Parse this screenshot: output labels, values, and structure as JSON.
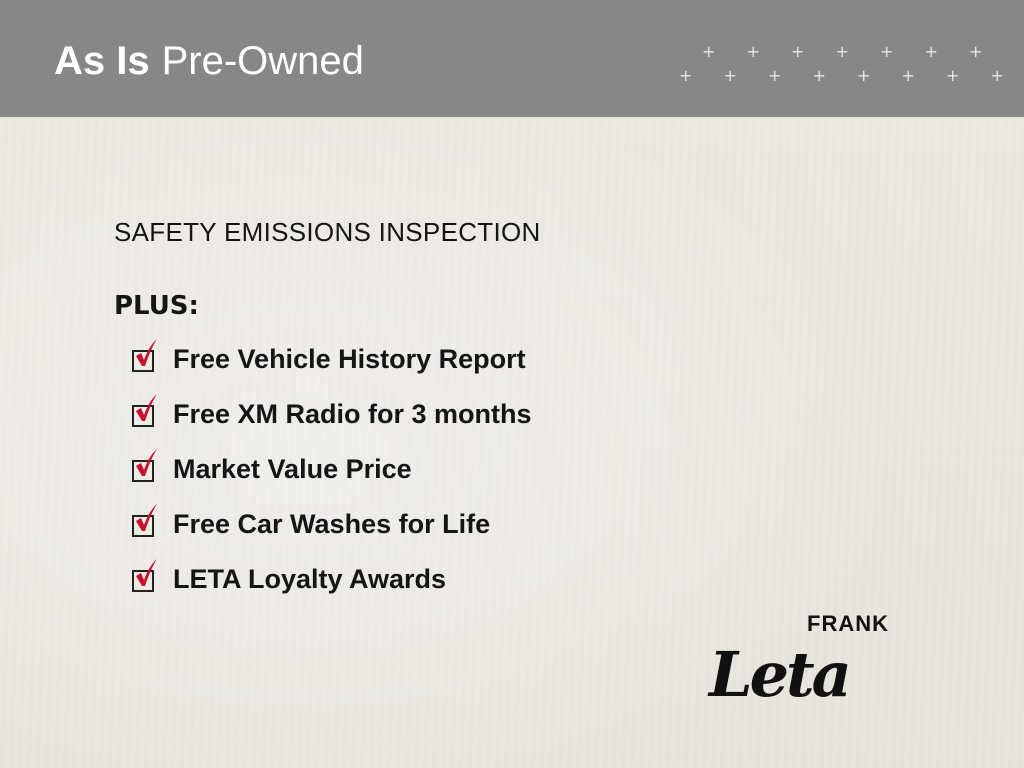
{
  "header": {
    "title_bold": "As Is",
    "title_rest": "Pre-Owned"
  },
  "content": {
    "heading": "SAFETY EMISSIONS INSPECTION",
    "plus_label": "PLUS:",
    "items": [
      {
        "label": "Free Vehicle History Report",
        "icon": "checked-box-icon"
      },
      {
        "label": "Free XM Radio for 3 months",
        "icon": "checked-box-icon"
      },
      {
        "label": "Market Value Price",
        "icon": "checked-box-icon"
      },
      {
        "label": "Free Car Washes for Life",
        "icon": "checked-box-icon"
      },
      {
        "label": "LETA Loyalty Awards",
        "icon": "checked-box-icon"
      }
    ],
    "check_color": "#c8102e"
  },
  "logo": {
    "top": "FRANK",
    "script": "Leta"
  },
  "colors": {
    "header": "#878787",
    "background": "#ebe8e2"
  }
}
